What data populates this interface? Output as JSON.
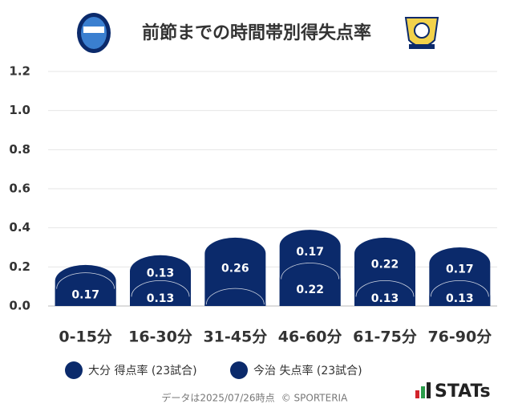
{
  "chart_data": {
    "type": "stacked_bar",
    "title": "前節までの時間帯別得失点率",
    "categories": [
      "0-15分",
      "16-30分",
      "31-45分",
      "46-60分",
      "61-75分",
      "76-90分"
    ],
    "series": [
      {
        "name": "大分 得点率 (23試合)",
        "color": "#0b2a6b",
        "values": [
          0.17,
          0.13,
          0.09,
          0.22,
          0.13,
          0.13
        ]
      },
      {
        "name": "今治 失点率 (23試合)",
        "color": "#0b2a6b",
        "values": [
          0.04,
          0.13,
          0.26,
          0.17,
          0.22,
          0.17
        ]
      }
    ],
    "ylim": [
      0,
      1.2
    ],
    "yticks": [
      {
        "value": 0,
        "label": "0.0"
      },
      0.2,
      0.4,
      0.6,
      0.8,
      {
        "value": 1,
        "label": "1.0"
      },
      1.2
    ],
    "grid": true,
    "footnote": "データは2025/07/26時点",
    "credit": "© SPORTERIA",
    "brand": "STATs"
  }
}
